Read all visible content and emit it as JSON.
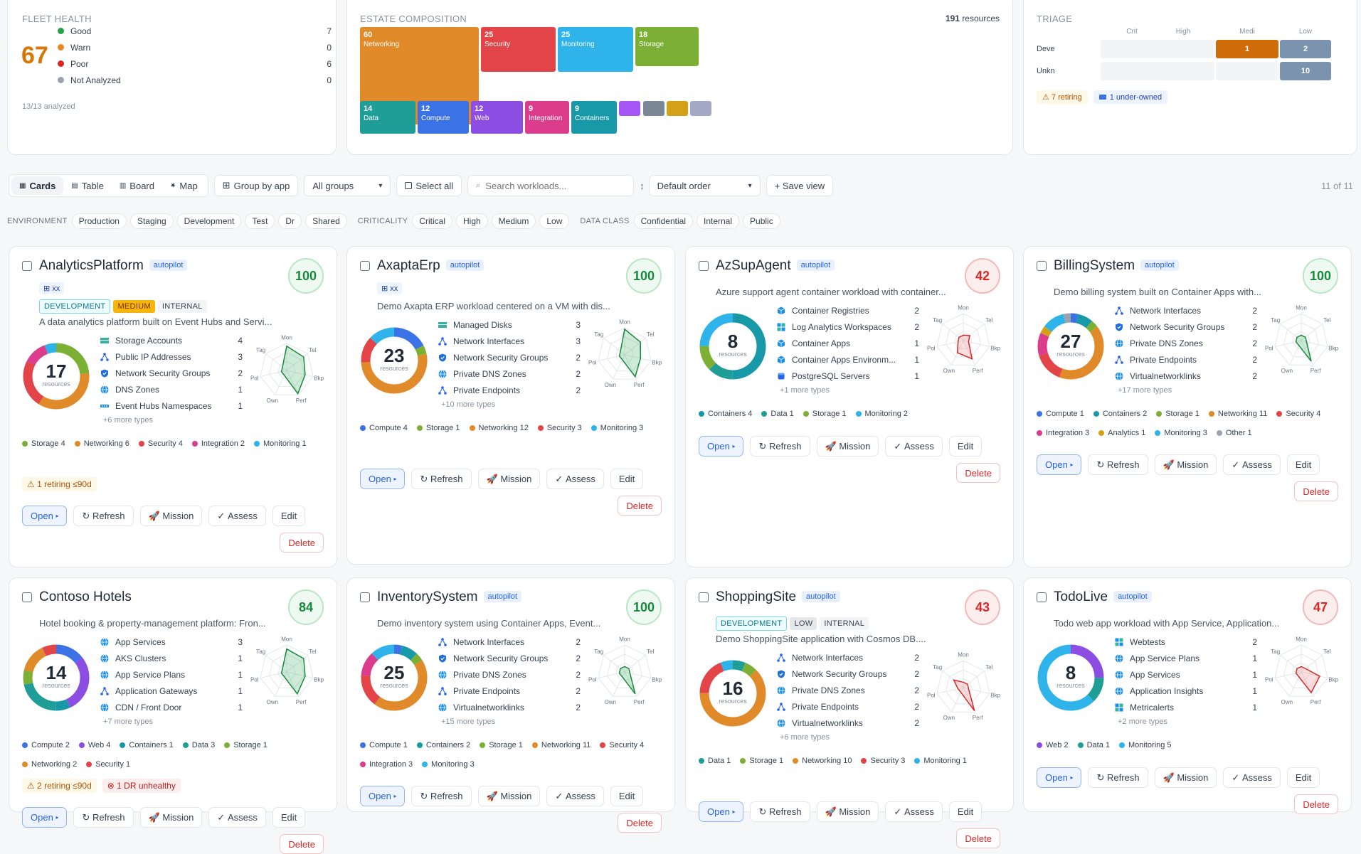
{
  "fleet": {
    "title": "FLEET HEALTH",
    "score": "67",
    "analyzed": "13/13 analyzed",
    "items": [
      {
        "label": "Good",
        "count": "7",
        "color": "#22a447"
      },
      {
        "label": "Warn",
        "count": "0",
        "color": "#e8871e"
      },
      {
        "label": "Poor",
        "count": "6",
        "color": "#dc2626"
      },
      {
        "label": "Not Analyzed",
        "count": "0",
        "color": "#9ca3af"
      }
    ]
  },
  "estate": {
    "title": "ESTATE COMPOSITION",
    "total": "191",
    "total_label": "resources",
    "tiles": [
      {
        "n": "60",
        "label": "Networking",
        "color": "#e08a2a"
      },
      {
        "n": "25",
        "label": "Security",
        "color": "#e24447"
      },
      {
        "n": "25",
        "label": "Monitoring",
        "color": "#2eb3ea"
      },
      {
        "n": "18",
        "label": "Storage",
        "color": "#7cb034"
      },
      {
        "n": "14",
        "label": "Data",
        "color": "#1f9e98"
      },
      {
        "n": "12",
        "label": "Compute",
        "color": "#3b73e6"
      },
      {
        "n": "12",
        "label": "Web",
        "color": "#8c4de3"
      },
      {
        "n": "9",
        "label": "Integration",
        "color": "#dc3c8c"
      },
      {
        "n": "9",
        "label": "Containers",
        "color": "#1799a8"
      }
    ]
  },
  "triage": {
    "title": "TRIAGE",
    "cols": [
      "Crit",
      "High",
      "Medi",
      "Low"
    ],
    "rows": [
      {
        "label": "Deve",
        "vals": [
          "",
          "",
          "1",
          "2"
        ]
      },
      {
        "label": "Unkn",
        "vals": [
          "",
          "",
          "",
          "10"
        ]
      }
    ],
    "badges": [
      "7 retiring",
      "1 under-owned"
    ]
  },
  "toolbar": {
    "views": [
      "Cards",
      "Table",
      "Board",
      "Map"
    ],
    "group_by": "Group by app",
    "groups_select": "All groups",
    "select_all": "Select all",
    "search_placeholder": "Search workloads...",
    "order_select": "Default order",
    "save_view": "+ Save view",
    "count": "11 of 11"
  },
  "filters": [
    {
      "label": "ENVIRONMENT",
      "chips": [
        "Production",
        "Staging",
        "Development",
        "Test",
        "Dr",
        "Shared"
      ]
    },
    {
      "label": "CRITICALITY",
      "chips": [
        "Critical",
        "High",
        "Medium",
        "Low"
      ]
    },
    {
      "label": "DATA CLASS",
      "chips": [
        "Confidential",
        "Internal",
        "Public"
      ]
    }
  ],
  "radar_axes": [
    "Mon",
    "Tel",
    "Bkp",
    "Perf",
    "Own",
    "Pol",
    "Tag"
  ],
  "resources_label": "resources",
  "actions": {
    "open": "Open",
    "refresh": "Refresh",
    "mission": "Mission",
    "assess": "Assess",
    "edit": "Edit",
    "delete": "Delete"
  },
  "cards": [
    {
      "name": "AnalyticsPlatform",
      "autopilot": "autopilot",
      "score": "100",
      "status": "good",
      "chipxx": "xx",
      "tags": [
        [
          "DEVELOPMENT",
          "dev"
        ],
        [
          "MEDIUM",
          "med"
        ],
        [
          "INTERNAL",
          "int"
        ]
      ],
      "desc": "A data analytics platform built on Event Hubs and Servi...",
      "total": "17",
      "res": [
        [
          "Storage Accounts",
          "4",
          "storage"
        ],
        [
          "Public IP Addresses",
          "3",
          "network"
        ],
        [
          "Network Security Groups",
          "2",
          "shield"
        ],
        [
          "DNS Zones",
          "1",
          "globe"
        ],
        [
          "Event Hubs Namespaces",
          "1",
          "hub"
        ]
      ],
      "more": "+6 more types",
      "cats": [
        [
          "Storage 4",
          "#7cb034"
        ],
        [
          "Networking 6",
          "#e08a2a"
        ],
        [
          "Security 4",
          "#e24447"
        ],
        [
          "Integration 2",
          "#dc3c8c"
        ],
        [
          "Monitoring 1",
          "#2eb3ea"
        ]
      ],
      "alerts": [
        [
          "1 retiring ≤90d",
          "warn"
        ]
      ],
      "radar": [
        0.9,
        0.8,
        0.7,
        0.95,
        0.2,
        0.2,
        0.2
      ],
      "ring": [
        [
          "#7cb034",
          4
        ],
        [
          "#e08a2a",
          6
        ],
        [
          "#e24447",
          4
        ],
        [
          "#dc3c8c",
          2
        ],
        [
          "#2eb3ea",
          1
        ]
      ]
    },
    {
      "name": "AxaptaErp",
      "autopilot": "autopilot",
      "score": "100",
      "status": "good",
      "chipxx": "xx",
      "tags": [],
      "desc": "Demo Axapta ERP workload centered on a VM with dis...",
      "total": "23",
      "res": [
        [
          "Managed Disks",
          "3",
          "storage"
        ],
        [
          "Network Interfaces",
          "3",
          "network"
        ],
        [
          "Network Security Groups",
          "2",
          "shield"
        ],
        [
          "Private DNS Zones",
          "2",
          "globe"
        ],
        [
          "Private Endpoints",
          "2",
          "network"
        ]
      ],
      "more": "+10 more types",
      "cats": [
        [
          "Compute 4",
          "#3b73e6"
        ],
        [
          "Storage 1",
          "#7cb034"
        ],
        [
          "Networking 12",
          "#e08a2a"
        ],
        [
          "Security 3",
          "#e24447"
        ],
        [
          "Monitoring 3",
          "#2eb3ea"
        ]
      ],
      "alerts": [],
      "radar": [
        0.95,
        0.75,
        0.6,
        0.9,
        0.2,
        0.2,
        0.2
      ],
      "ring": [
        [
          "#3b73e6",
          4
        ],
        [
          "#7cb034",
          1
        ],
        [
          "#e08a2a",
          12
        ],
        [
          "#e24447",
          3
        ],
        [
          "#2eb3ea",
          3
        ]
      ]
    },
    {
      "name": "AzSupAgent",
      "autopilot": "autopilot",
      "score": "42",
      "status": "poor",
      "chipxx": "",
      "tags": [],
      "desc": "Azure support agent container workload with container...",
      "total": "8",
      "res": [
        [
          "Container Registries",
          "2",
          "cube"
        ],
        [
          "Log Analytics Workspaces",
          "2",
          "grid"
        ],
        [
          "Container Apps",
          "1",
          "cube"
        ],
        [
          "Container Apps Environm...",
          "1",
          "cube"
        ],
        [
          "PostgreSQL Servers",
          "1",
          "db"
        ]
      ],
      "more": "+1 more types",
      "cats": [
        [
          "Containers 4",
          "#1799a8"
        ],
        [
          "Data 1",
          "#1f9e98"
        ],
        [
          "Storage 1",
          "#7cb034"
        ],
        [
          "Monitoring 2",
          "#2eb3ea"
        ]
      ],
      "alerts": [],
      "radar": [
        0.2,
        0.3,
        0.2,
        0.75,
        0.5,
        0.2,
        0.2
      ],
      "ring": [
        [
          "#1799a8",
          4
        ],
        [
          "#1f9e98",
          1
        ],
        [
          "#7cb034",
          1
        ],
        [
          "#2eb3ea",
          2
        ]
      ]
    },
    {
      "name": "BillingSystem",
      "autopilot": "autopilot",
      "score": "100",
      "status": "good",
      "chipxx": "",
      "tags": [],
      "desc": "Demo billing system built on Container Apps with...",
      "total": "27",
      "res": [
        [
          "Network Interfaces",
          "2",
          "network"
        ],
        [
          "Network Security Groups",
          "2",
          "shield"
        ],
        [
          "Private DNS Zones",
          "2",
          "globe"
        ],
        [
          "Private Endpoints",
          "2",
          "network"
        ],
        [
          "Virtualnetworklinks",
          "2",
          "globe"
        ]
      ],
      "more": "+17 more types",
      "cats": [
        [
          "Compute 1",
          "#3b73e6"
        ],
        [
          "Containers 2",
          "#1799a8"
        ],
        [
          "Storage 1",
          "#7cb034"
        ],
        [
          "Networking 11",
          "#e08a2a"
        ],
        [
          "Security 4",
          "#e24447"
        ],
        [
          "Integration 3",
          "#dc3c8c"
        ],
        [
          "Analytics 1",
          "#d4a017"
        ],
        [
          "Monitoring 3",
          "#2eb3ea"
        ],
        [
          "Other 1",
          "#9ca3af"
        ]
      ],
      "alerts": [],
      "radar": [
        0.2,
        0.2,
        0.2,
        0.85,
        0.2,
        0.2,
        0.2
      ],
      "ring": [
        [
          "#3b73e6",
          1
        ],
        [
          "#1799a8",
          2
        ],
        [
          "#7cb034",
          1
        ],
        [
          "#e08a2a",
          11
        ],
        [
          "#e24447",
          4
        ],
        [
          "#dc3c8c",
          3
        ],
        [
          "#d4a017",
          1
        ],
        [
          "#2eb3ea",
          3
        ],
        [
          "#9ca3af",
          1
        ]
      ]
    },
    {
      "name": "Contoso Hotels",
      "autopilot": "",
      "score": "84",
      "status": "good",
      "chipxx": "",
      "tags": [],
      "desc": "Hotel booking & property-management platform: Fron...",
      "total": "14",
      "res": [
        [
          "App Services",
          "3",
          "globe"
        ],
        [
          "AKS Clusters",
          "1",
          "globe"
        ],
        [
          "App Service Plans",
          "1",
          "globe"
        ],
        [
          "Application Gateways",
          "1",
          "network"
        ],
        [
          "CDN / Front Door",
          "1",
          "globe"
        ]
      ],
      "more": "+7 more types",
      "cats": [
        [
          "Compute 2",
          "#3b73e6"
        ],
        [
          "Web 4",
          "#8c4de3"
        ],
        [
          "Containers 1",
          "#1799a8"
        ],
        [
          "Data 3",
          "#1f9e98"
        ],
        [
          "Storage 1",
          "#7cb034"
        ],
        [
          "Networking 2",
          "#e08a2a"
        ],
        [
          "Security 1",
          "#e24447"
        ]
      ],
      "alerts": [
        [
          "2 retiring ≤90d",
          "warn"
        ],
        [
          "1 DR unhealthy",
          "bad"
        ]
      ],
      "radar": [
        0.85,
        0.8,
        0.7,
        0.9,
        0.2,
        0.2,
        0.2
      ],
      "ring": [
        [
          "#3b73e6",
          2
        ],
        [
          "#8c4de3",
          4
        ],
        [
          "#1799a8",
          1
        ],
        [
          "#1f9e98",
          3
        ],
        [
          "#7cb034",
          1
        ],
        [
          "#e08a2a",
          2
        ],
        [
          "#e24447",
          1
        ]
      ]
    },
    {
      "name": "InventorySystem",
      "autopilot": "autopilot",
      "score": "100",
      "status": "good",
      "chipxx": "",
      "tags": [],
      "desc": "Demo inventory system using Container Apps, Event...",
      "total": "25",
      "res": [
        [
          "Network Interfaces",
          "2",
          "network"
        ],
        [
          "Network Security Groups",
          "2",
          "shield"
        ],
        [
          "Private DNS Zones",
          "2",
          "globe"
        ],
        [
          "Private Endpoints",
          "2",
          "network"
        ],
        [
          "Virtualnetworklinks",
          "2",
          "globe"
        ]
      ],
      "more": "+15 more types",
      "cats": [
        [
          "Compute 1",
          "#3b73e6"
        ],
        [
          "Containers 2",
          "#1799a8"
        ],
        [
          "Storage 1",
          "#7cb034"
        ],
        [
          "Networking 11",
          "#e08a2a"
        ],
        [
          "Security 4",
          "#e24447"
        ],
        [
          "Integration 3",
          "#dc3c8c"
        ],
        [
          "Monitoring 3",
          "#2eb3ea"
        ]
      ],
      "alerts": [],
      "radar": [
        0.2,
        0.2,
        0.2,
        0.9,
        0.2,
        0.2,
        0.2
      ],
      "ring": [
        [
          "#3b73e6",
          1
        ],
        [
          "#1799a8",
          2
        ],
        [
          "#7cb034",
          1
        ],
        [
          "#e08a2a",
          11
        ],
        [
          "#e24447",
          4
        ],
        [
          "#dc3c8c",
          3
        ],
        [
          "#2eb3ea",
          3
        ]
      ]
    },
    {
      "name": "ShoppingSite",
      "autopilot": "autopilot",
      "score": "43",
      "status": "poor",
      "chipxx": "",
      "tags": [
        [
          "DEVELOPMENT",
          "dev"
        ],
        [
          "LOW",
          "low"
        ],
        [
          "INTERNAL",
          "int"
        ]
      ],
      "desc": "Demo ShoppingSite application with Cosmos DB....",
      "total": "16",
      "res": [
        [
          "Network Interfaces",
          "2",
          "network"
        ],
        [
          "Network Security Groups",
          "2",
          "shield"
        ],
        [
          "Private DNS Zones",
          "2",
          "globe"
        ],
        [
          "Private Endpoints",
          "2",
          "network"
        ],
        [
          "Virtualnetworklinks",
          "2",
          "globe"
        ]
      ],
      "more": "+6 more types",
      "cats": [
        [
          "Data 1",
          "#1f9e98"
        ],
        [
          "Storage 1",
          "#7cb034"
        ],
        [
          "Networking 10",
          "#e08a2a"
        ],
        [
          "Security 3",
          "#e24447"
        ],
        [
          "Monitoring 1",
          "#2eb3ea"
        ]
      ],
      "alerts": [],
      "radar": [
        0.2,
        0.2,
        0.2,
        0.95,
        0.2,
        0.2,
        0.45
      ],
      "ring": [
        [
          "#1f9e98",
          1
        ],
        [
          "#7cb034",
          1
        ],
        [
          "#e08a2a",
          10
        ],
        [
          "#e24447",
          3
        ],
        [
          "#2eb3ea",
          1
        ]
      ]
    },
    {
      "name": "TodoLive",
      "autopilot": "autopilot",
      "score": "47",
      "status": "poor",
      "chipxx": "",
      "tags": [],
      "desc": "Todo web app workload with App Service, Application...",
      "total": "8",
      "res": [
        [
          "Webtests",
          "2",
          "grid"
        ],
        [
          "App Service Plans",
          "1",
          "globe"
        ],
        [
          "App Services",
          "1",
          "globe"
        ],
        [
          "Application Insights",
          "1",
          "globe"
        ],
        [
          "Metricalerts",
          "1",
          "grid"
        ]
      ],
      "more": "+2 more types",
      "cats": [
        [
          "Web 2",
          "#8c4de3"
        ],
        [
          "Data 1",
          "#1f9e98"
        ],
        [
          "Monitoring 5",
          "#2eb3ea"
        ]
      ],
      "alerts": [],
      "radar": [
        0.2,
        0.2,
        0.7,
        0.85,
        0.2,
        0.2,
        0.2
      ],
      "ring": [
        [
          "#8c4de3",
          2
        ],
        [
          "#1f9e98",
          1
        ],
        [
          "#2eb3ea",
          5
        ]
      ]
    }
  ]
}
